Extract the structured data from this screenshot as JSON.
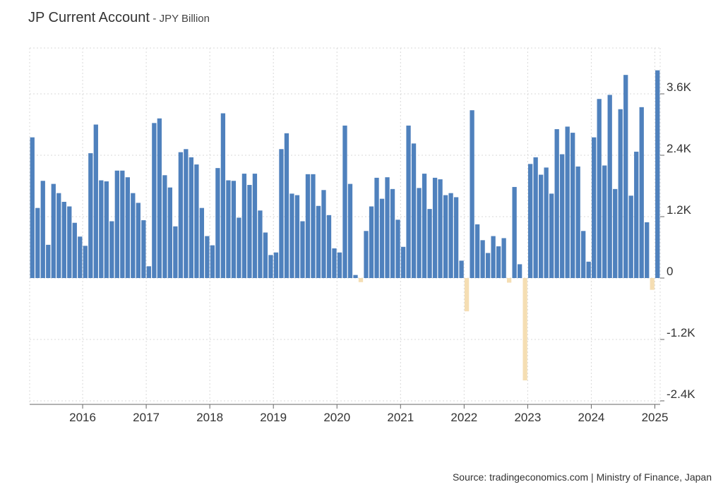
{
  "title": "JP Current Account",
  "unit_suffix": "- JPY Billion",
  "source": "Source: tradingeconomics.com | Ministry of Finance, Japan",
  "colors": {
    "positive": "#4f81bd",
    "negative": "#f5deb3",
    "grid": "#d9d9d9",
    "axis": "#666666"
  },
  "chart_data": {
    "type": "bar",
    "title": "JP Current Account",
    "ylabel": "JPY Billion",
    "xlabel": "",
    "start": "2015-03",
    "frequency": "monthly",
    "ylim": [
      -2400,
      4400
    ],
    "yticks": [
      -2400,
      -1200,
      0,
      1200,
      2400,
      3600
    ],
    "ytick_labels": [
      "-2.4K",
      "-1.2K",
      "0",
      "1.2K",
      "2.4K",
      "3.6K"
    ],
    "xticks": [
      "2016",
      "2017",
      "2018",
      "2019",
      "2020",
      "2021",
      "2022",
      "2023",
      "2024",
      "2025"
    ],
    "values": [
      2750,
      1370,
      1900,
      650,
      1840,
      1660,
      1490,
      1400,
      1080,
      810,
      630,
      2440,
      3000,
      1910,
      1890,
      1110,
      2100,
      2100,
      1970,
      1660,
      1470,
      1130,
      230,
      3030,
      3120,
      2010,
      1770,
      1010,
      2460,
      2520,
      2360,
      2220,
      1370,
      820,
      640,
      2150,
      3220,
      1910,
      1900,
      1180,
      2040,
      1820,
      2040,
      1320,
      890,
      450,
      500,
      2520,
      2830,
      1650,
      1620,
      1110,
      2030,
      2030,
      1410,
      1720,
      1230,
      580,
      500,
      2980,
      1840,
      60,
      -80,
      920,
      1400,
      1960,
      1550,
      1970,
      1740,
      1140,
      610,
      2980,
      2630,
      1760,
      2040,
      1350,
      1960,
      1930,
      1620,
      1660,
      1580,
      340,
      -650,
      3280,
      1050,
      740,
      490,
      820,
      620,
      780,
      -90,
      1780,
      270,
      -2000,
      2230,
      2360,
      2020,
      2160,
      1650,
      2910,
      2420,
      2960,
      2840,
      2180,
      920,
      320,
      2750,
      3500,
      2200,
      3580,
      1740,
      3300,
      3970,
      1610,
      2470,
      3340,
      1090,
      -230,
      4060
    ]
  }
}
